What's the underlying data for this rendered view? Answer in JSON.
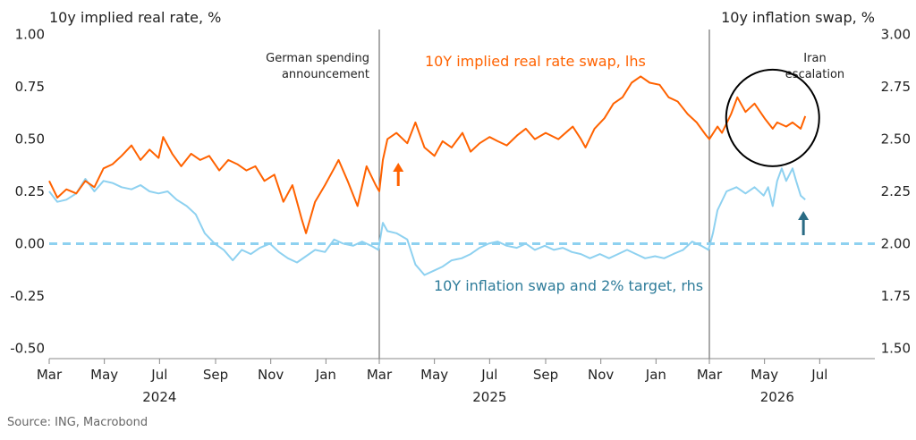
{
  "chart_data": {
    "type": "line",
    "title": "",
    "left_axis": {
      "label": "10y implied real rate, %",
      "range": [
        -0.55,
        1.05
      ],
      "ticks": [
        1.0,
        0.75,
        0.5,
        0.25,
        0.0,
        -0.25,
        -0.5
      ],
      "tick_labels": [
        "1.00",
        "0.75",
        "0.50",
        "0.25",
        "0.00",
        "-0.25",
        "-0.50"
      ]
    },
    "right_axis": {
      "label": "10y inflation swap, %",
      "range": [
        1.45,
        3.05
      ],
      "ticks": [
        3.0,
        2.75,
        2.5,
        2.25,
        2.0,
        1.75,
        1.5
      ],
      "tick_labels": [
        "3.00",
        "2.75",
        "2.50",
        "2.25",
        "2.00",
        "1.75",
        "1.50"
      ]
    },
    "x_axis": {
      "range": [
        "2024-03-01",
        "2026-08-31"
      ],
      "month_labels": [
        {
          "date": "2024-03-01",
          "label": "Mar"
        },
        {
          "date": "2024-05-01",
          "label": "May"
        },
        {
          "date": "2024-07-01",
          "label": "Jul"
        },
        {
          "date": "2024-09-01",
          "label": "Sep"
        },
        {
          "date": "2024-11-01",
          "label": "Nov"
        },
        {
          "date": "2025-01-01",
          "label": "Jan"
        },
        {
          "date": "2025-03-01",
          "label": "Mar"
        },
        {
          "date": "2025-05-01",
          "label": "May"
        },
        {
          "date": "2025-07-01",
          "label": "Jul"
        },
        {
          "date": "2025-09-01",
          "label": "Sep"
        },
        {
          "date": "2025-11-01",
          "label": "Nov"
        },
        {
          "date": "2026-01-01",
          "label": "Jan"
        },
        {
          "date": "2026-03-01",
          "label": "Mar"
        },
        {
          "date": "2026-05-01",
          "label": "May"
        },
        {
          "date": "2026-07-01",
          "label": "Jul"
        }
      ],
      "year_labels": [
        {
          "date": "2024-07-01",
          "label": "2024"
        },
        {
          "date": "2025-07-01",
          "label": "2025"
        },
        {
          "date": "2026-05-15",
          "label": "2026"
        }
      ]
    },
    "grid": false,
    "series": [
      {
        "name": "10Y implied real rate swap, lhs",
        "axis": "left",
        "color": "#ff6200",
        "points": [
          [
            "2024-03-01",
            0.3
          ],
          [
            "2024-03-10",
            0.22
          ],
          [
            "2024-03-20",
            0.26
          ],
          [
            "2024-03-31",
            0.24
          ],
          [
            "2024-04-10",
            0.3
          ],
          [
            "2024-04-20",
            0.27
          ],
          [
            "2024-04-30",
            0.36
          ],
          [
            "2024-05-10",
            0.38
          ],
          [
            "2024-05-20",
            0.42
          ],
          [
            "2024-05-31",
            0.47
          ],
          [
            "2024-06-10",
            0.4
          ],
          [
            "2024-06-20",
            0.45
          ],
          [
            "2024-06-30",
            0.41
          ],
          [
            "2024-07-05",
            0.51
          ],
          [
            "2024-07-15",
            0.43
          ],
          [
            "2024-07-25",
            0.37
          ],
          [
            "2024-08-05",
            0.43
          ],
          [
            "2024-08-15",
            0.4
          ],
          [
            "2024-08-25",
            0.42
          ],
          [
            "2024-09-05",
            0.35
          ],
          [
            "2024-09-15",
            0.4
          ],
          [
            "2024-09-25",
            0.38
          ],
          [
            "2024-10-05",
            0.35
          ],
          [
            "2024-10-15",
            0.37
          ],
          [
            "2024-10-25",
            0.3
          ],
          [
            "2024-11-05",
            0.33
          ],
          [
            "2024-11-15",
            0.2
          ],
          [
            "2024-11-25",
            0.28
          ],
          [
            "2024-12-05",
            0.12
          ],
          [
            "2024-12-10",
            0.05
          ],
          [
            "2024-12-20",
            0.2
          ],
          [
            "2024-12-31",
            0.28
          ],
          [
            "2025-01-10",
            0.36
          ],
          [
            "2025-01-15",
            0.4
          ],
          [
            "2025-01-25",
            0.3
          ],
          [
            "2025-02-05",
            0.18
          ],
          [
            "2025-02-15",
            0.37
          ],
          [
            "2025-02-25",
            0.28
          ],
          [
            "2025-03-01",
            0.25
          ],
          [
            "2025-03-05",
            0.4
          ],
          [
            "2025-03-10",
            0.5
          ],
          [
            "2025-03-20",
            0.53
          ],
          [
            "2025-04-01",
            0.48
          ],
          [
            "2025-04-10",
            0.58
          ],
          [
            "2025-04-20",
            0.46
          ],
          [
            "2025-05-01",
            0.42
          ],
          [
            "2025-05-10",
            0.49
          ],
          [
            "2025-05-20",
            0.46
          ],
          [
            "2025-06-01",
            0.53
          ],
          [
            "2025-06-10",
            0.44
          ],
          [
            "2025-06-20",
            0.48
          ],
          [
            "2025-07-01",
            0.51
          ],
          [
            "2025-07-10",
            0.49
          ],
          [
            "2025-07-20",
            0.47
          ],
          [
            "2025-08-01",
            0.52
          ],
          [
            "2025-08-10",
            0.55
          ],
          [
            "2025-08-20",
            0.5
          ],
          [
            "2025-09-01",
            0.53
          ],
          [
            "2025-09-15",
            0.5
          ],
          [
            "2025-10-01",
            0.56
          ],
          [
            "2025-10-10",
            0.5
          ],
          [
            "2025-10-15",
            0.46
          ],
          [
            "2025-10-25",
            0.55
          ],
          [
            "2025-11-05",
            0.6
          ],
          [
            "2025-11-15",
            0.67
          ],
          [
            "2025-11-25",
            0.7
          ],
          [
            "2025-12-05",
            0.77
          ],
          [
            "2025-12-15",
            0.8
          ],
          [
            "2025-12-25",
            0.77
          ],
          [
            "2026-01-05",
            0.76
          ],
          [
            "2026-01-15",
            0.7
          ],
          [
            "2026-01-25",
            0.68
          ],
          [
            "2026-02-05",
            0.62
          ],
          [
            "2026-02-15",
            0.58
          ],
          [
            "2026-02-25",
            0.52
          ],
          [
            "2026-03-01",
            0.5
          ],
          [
            "2026-03-10",
            0.56
          ],
          [
            "2026-03-15",
            0.53
          ],
          [
            "2026-03-25",
            0.62
          ],
          [
            "2026-04-01",
            0.7
          ],
          [
            "2026-04-10",
            0.63
          ],
          [
            "2026-04-20",
            0.67
          ],
          [
            "2026-05-01",
            0.6
          ],
          [
            "2026-05-10",
            0.55
          ],
          [
            "2026-05-15",
            0.58
          ],
          [
            "2026-05-25",
            0.56
          ],
          [
            "2026-06-01",
            0.58
          ],
          [
            "2026-06-10",
            0.55
          ],
          [
            "2026-06-15",
            0.61
          ]
        ]
      },
      {
        "name": "10Y inflation swap and 2% target, rhs",
        "axis": "right",
        "color": "#8ed1f0",
        "label_color": "#2e7c9a",
        "points": [
          [
            "2024-03-01",
            2.25
          ],
          [
            "2024-03-10",
            2.2
          ],
          [
            "2024-03-20",
            2.21
          ],
          [
            "2024-03-31",
            2.24
          ],
          [
            "2024-04-10",
            2.31
          ],
          [
            "2024-04-20",
            2.25
          ],
          [
            "2024-04-30",
            2.3
          ],
          [
            "2024-05-10",
            2.29
          ],
          [
            "2024-05-20",
            2.27
          ],
          [
            "2024-05-31",
            2.26
          ],
          [
            "2024-06-10",
            2.28
          ],
          [
            "2024-06-20",
            2.25
          ],
          [
            "2024-06-30",
            2.24
          ],
          [
            "2024-07-10",
            2.25
          ],
          [
            "2024-07-20",
            2.21
          ],
          [
            "2024-07-31",
            2.18
          ],
          [
            "2024-08-10",
            2.14
          ],
          [
            "2024-08-20",
            2.05
          ],
          [
            "2024-08-31",
            2.0
          ],
          [
            "2024-09-10",
            1.97
          ],
          [
            "2024-09-20",
            1.92
          ],
          [
            "2024-09-30",
            1.97
          ],
          [
            "2024-10-10",
            1.95
          ],
          [
            "2024-10-20",
            1.98
          ],
          [
            "2024-10-31",
            2.0
          ],
          [
            "2024-11-10",
            1.96
          ],
          [
            "2024-11-20",
            1.93
          ],
          [
            "2024-11-30",
            1.91
          ],
          [
            "2024-12-10",
            1.94
          ],
          [
            "2024-12-20",
            1.97
          ],
          [
            "2024-12-31",
            1.96
          ],
          [
            "2025-01-10",
            2.02
          ],
          [
            "2025-01-20",
            2.0
          ],
          [
            "2025-01-31",
            1.99
          ],
          [
            "2025-02-10",
            2.01
          ],
          [
            "2025-02-20",
            1.99
          ],
          [
            "2025-02-28",
            1.97
          ],
          [
            "2025-03-05",
            2.1
          ],
          [
            "2025-03-10",
            2.06
          ],
          [
            "2025-03-20",
            2.05
          ],
          [
            "2025-04-01",
            2.02
          ],
          [
            "2025-04-10",
            1.9
          ],
          [
            "2025-04-20",
            1.85
          ],
          [
            "2025-04-30",
            1.87
          ],
          [
            "2025-05-10",
            1.89
          ],
          [
            "2025-05-20",
            1.92
          ],
          [
            "2025-05-31",
            1.93
          ],
          [
            "2025-06-10",
            1.95
          ],
          [
            "2025-06-20",
            1.98
          ],
          [
            "2025-06-30",
            2.0
          ],
          [
            "2025-07-10",
            2.01
          ],
          [
            "2025-07-20",
            1.99
          ],
          [
            "2025-07-31",
            1.98
          ],
          [
            "2025-08-10",
            2.0
          ],
          [
            "2025-08-20",
            1.97
          ],
          [
            "2025-08-31",
            1.99
          ],
          [
            "2025-09-10",
            1.97
          ],
          [
            "2025-09-20",
            1.98
          ],
          [
            "2025-09-30",
            1.96
          ],
          [
            "2025-10-10",
            1.95
          ],
          [
            "2025-10-20",
            1.93
          ],
          [
            "2025-10-31",
            1.95
          ],
          [
            "2025-11-10",
            1.93
          ],
          [
            "2025-11-20",
            1.95
          ],
          [
            "2025-11-30",
            1.97
          ],
          [
            "2025-12-10",
            1.95
          ],
          [
            "2025-12-20",
            1.93
          ],
          [
            "2025-12-31",
            1.94
          ],
          [
            "2026-01-10",
            1.93
          ],
          [
            "2026-01-20",
            1.95
          ],
          [
            "2026-01-31",
            1.97
          ],
          [
            "2026-02-10",
            2.01
          ],
          [
            "2026-02-20",
            1.99
          ],
          [
            "2026-02-28",
            1.97
          ],
          [
            "2026-03-05",
            2.05
          ],
          [
            "2026-03-10",
            2.16
          ],
          [
            "2026-03-20",
            2.25
          ],
          [
            "2026-03-31",
            2.27
          ],
          [
            "2026-04-10",
            2.24
          ],
          [
            "2026-04-20",
            2.27
          ],
          [
            "2026-04-30",
            2.23
          ],
          [
            "2026-05-05",
            2.27
          ],
          [
            "2026-05-10",
            2.18
          ],
          [
            "2026-05-15",
            2.3
          ],
          [
            "2026-05-20",
            2.36
          ],
          [
            "2026-05-25",
            2.3
          ],
          [
            "2026-06-01",
            2.36
          ],
          [
            "2026-06-05",
            2.3
          ],
          [
            "2026-06-10",
            2.23
          ],
          [
            "2026-06-15",
            2.21
          ]
        ]
      }
    ],
    "reference_lines": [
      {
        "axis": "right",
        "value": 2.0,
        "style": "dashed",
        "color": "#8ed1f0"
      }
    ],
    "event_lines": [
      {
        "date": "2025-03-01",
        "label": [
          "German spending",
          "announcement"
        ]
      },
      {
        "date": "2026-03-01",
        "label": [
          "Iran",
          "escalation"
        ]
      }
    ],
    "annotations": {
      "arrow_up_1": {
        "date": "2025-03-22",
        "color": "#ff6200"
      },
      "arrow_up_2": {
        "date": "2026-06-13",
        "color": "#2a6b84"
      },
      "circle_highlight": {
        "center_date": "2026-05-10",
        "center_left_value": 0.58
      }
    },
    "source": "Source: ING, Macrobond"
  }
}
